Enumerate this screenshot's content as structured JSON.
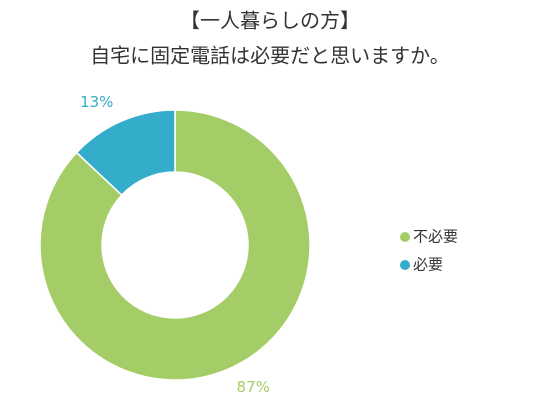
{
  "chart_data": {
    "type": "donut",
    "title": "【一人暮らしの方】",
    "subtitle": "自宅に固定電話は必要だと思いますか。",
    "categories": [
      "不必要",
      "必要"
    ],
    "values": [
      87,
      13
    ],
    "value_labels": [
      "87%",
      "13%"
    ],
    "colors": [
      "#a5cd67",
      "#33adc9"
    ],
    "legend": "right"
  }
}
